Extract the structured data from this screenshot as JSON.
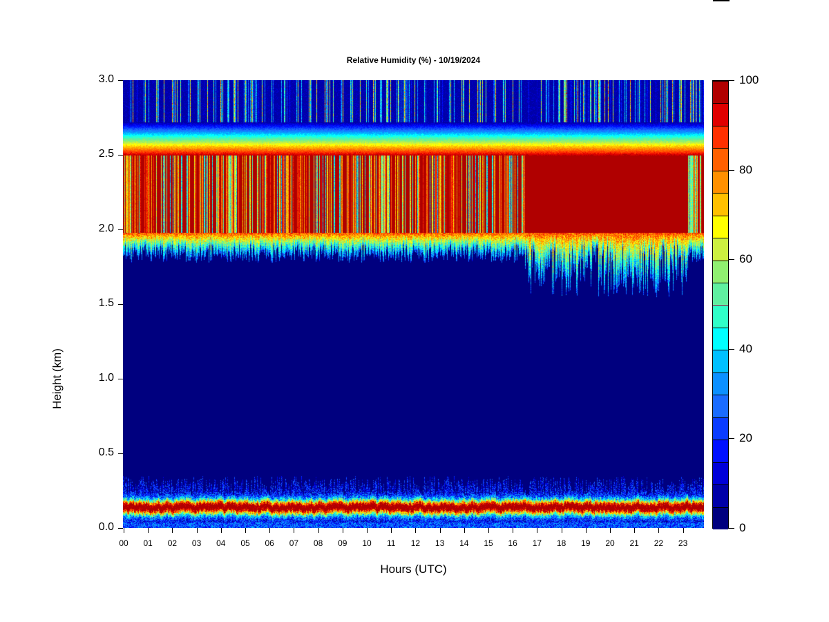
{
  "chart_data": {
    "type": "heatmap",
    "title": "Relative Humidity (%) - 10/19/2024",
    "xlabel": "Hours (UTC)",
    "ylabel": "Height (km)",
    "xlim": [
      0,
      23.9
    ],
    "ylim": [
      0,
      3.0
    ],
    "x_ticks": [
      "00",
      "01",
      "02",
      "03",
      "04",
      "05",
      "06",
      "07",
      "08",
      "09",
      "10",
      "11",
      "12",
      "13",
      "14",
      "15",
      "16",
      "17",
      "18",
      "19",
      "20",
      "21",
      "22",
      "23"
    ],
    "y_ticks": [
      "0.0",
      "0.5",
      "1.0",
      "1.5",
      "2.0",
      "2.5",
      "3.0"
    ],
    "colorbar": {
      "min": 0,
      "max": 100,
      "step": 5,
      "tick_labels": [
        "0",
        "20",
        "40",
        "60",
        "80",
        "100"
      ],
      "colors": [
        "#00007f",
        "#0000a8",
        "#0000d8",
        "#0010ff",
        "#0a3cff",
        "#1a6cff",
        "#0c90ff",
        "#00c0ff",
        "#00ffff",
        "#30ffc8",
        "#60f0a0",
        "#90f070",
        "#ccf040",
        "#ffff00",
        "#ffc000",
        "#ff9000",
        "#ff6000",
        "#ff3000",
        "#e00000",
        "#b00000",
        "#800000"
      ]
    },
    "features": [
      {
        "name": "surface moist layer",
        "height_km": [
          0.0,
          0.35
        ],
        "peak_height_km": 0.14,
        "peak_rh": 95
      },
      {
        "name": "dry mid layer",
        "height_km": [
          0.35,
          1.9
        ],
        "rh": 2
      },
      {
        "name": "saturated layer",
        "height_km": [
          1.95,
          2.5
        ],
        "rh": 90,
        "solid_after_hour": 16.5
      },
      {
        "name": "upper transition",
        "height_km": [
          2.5,
          2.72
        ],
        "rh_from": 95,
        "rh_to": 10
      },
      {
        "name": "upper dry layer",
        "height_km": [
          2.72,
          3.0
        ],
        "rh": 8
      }
    ]
  }
}
